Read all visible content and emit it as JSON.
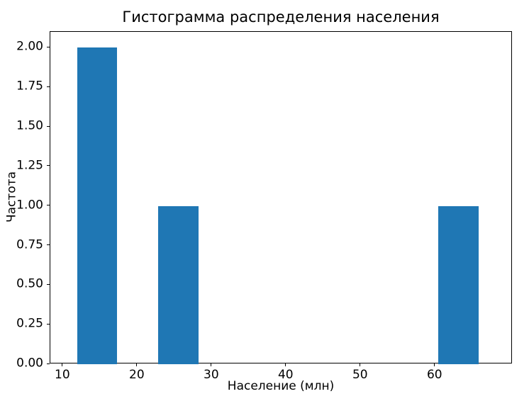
{
  "figure": {
    "background": "#ffffff",
    "spine_color": "#000000",
    "text_color": "#000000"
  },
  "chart_data": {
    "type": "bar",
    "subtype": "histogram",
    "title": "Гистограмма распределения населения",
    "xlabel": "Население (млн)",
    "ylabel": "Частота",
    "bar_color": "#1f77b4",
    "grid": false,
    "legend_position": "none",
    "xlim": [
      8.3,
      70.4
    ],
    "ylim": [
      0,
      2.1
    ],
    "xticks": [
      "10",
      "20",
      "30",
      "40",
      "50",
      "60"
    ],
    "yticks": [
      "0.00",
      "0.25",
      "0.50",
      "0.75",
      "1.00",
      "1.25",
      "1.50",
      "1.75",
      "2.00"
    ],
    "bars": [
      {
        "bin_start": 11.9,
        "bin_end": 17.3,
        "frequency": 2
      },
      {
        "bin_start": 22.8,
        "bin_end": 28.2,
        "frequency": 1
      },
      {
        "bin_start": 60.4,
        "bin_end": 65.8,
        "frequency": 1
      }
    ]
  }
}
